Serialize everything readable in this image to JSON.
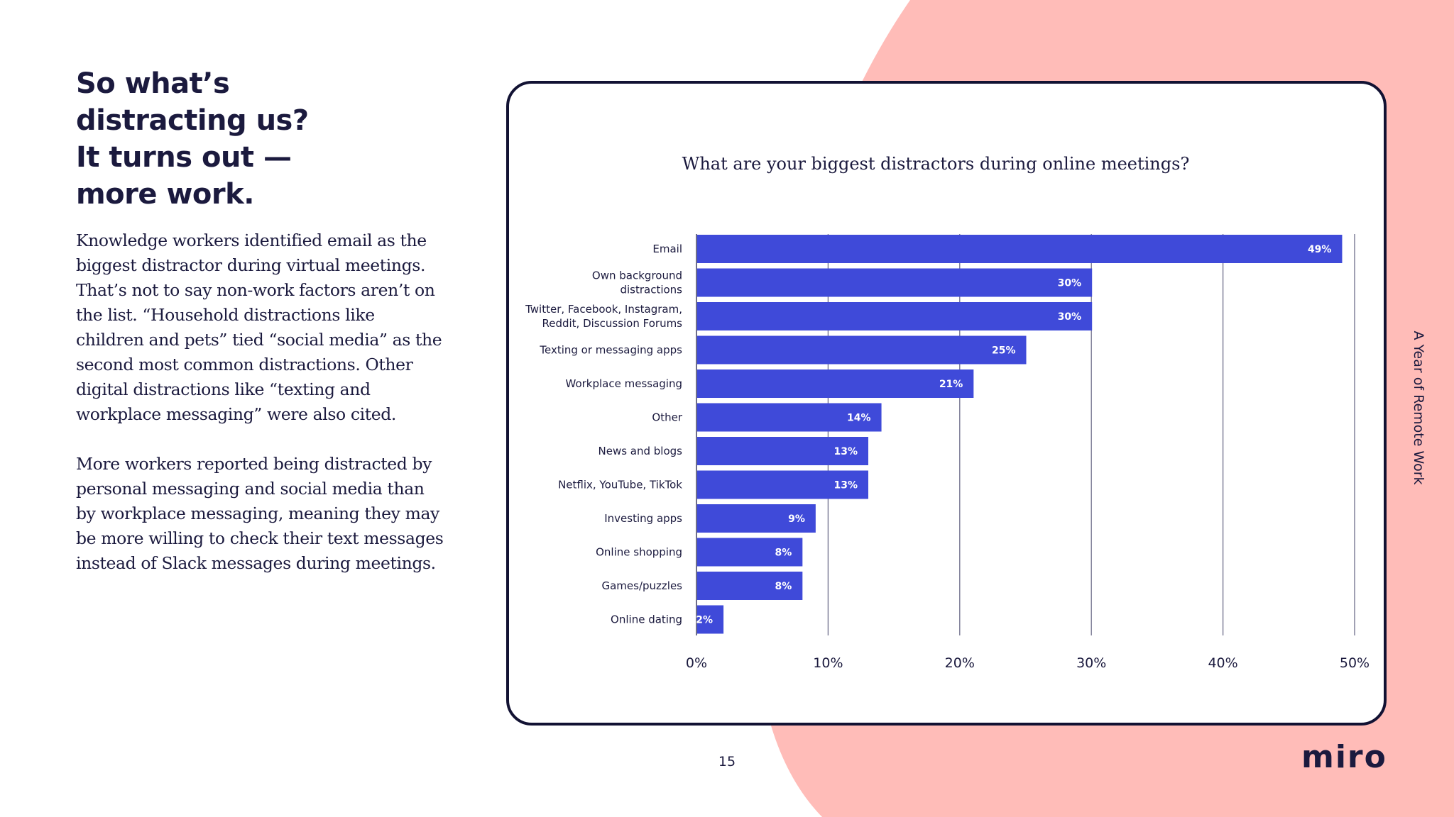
{
  "slide": {
    "heading_lines": [
      "So what’s",
      "distracting us?",
      "It turns out —",
      "more work."
    ],
    "paragraph1": "Knowledge workers identified email as the biggest distractor during virtual meetings. That’s not to say non-work factors aren’t on the list. “Household distractions like children and pets” tied “social media” as the second most common distractions. Other digital distractions like “texting and workplace messaging” were also cited.",
    "paragraph2": "More workers reported being distracted by personal messaging and social media than by workplace messaging, meaning they may be more willing to check their text messages instead of Slack messages during meetings.",
    "side_label": "A Year of Remote Work",
    "page_number": "15",
    "logo": "miro"
  },
  "colors": {
    "accent_pink": "#ffbcb8",
    "bar_blue": "#3f4ad9",
    "ink": "#1b1a3e"
  },
  "chart_data": {
    "type": "bar",
    "orientation": "horizontal",
    "title": "What are your biggest distractors during online meetings?",
    "xlabel": "",
    "ylabel": "",
    "categories": [
      [
        "Email"
      ],
      [
        "Own background",
        "distractions"
      ],
      [
        "Twitter, Facebook, Instagram,",
        "Reddit, Discussion Forums"
      ],
      [
        "Texting or messaging apps"
      ],
      [
        "Workplace messaging"
      ],
      [
        "Other"
      ],
      [
        "News and blogs"
      ],
      [
        "Netflix, YouTube, TikTok"
      ],
      [
        "Investing apps"
      ],
      [
        "Online shopping"
      ],
      [
        "Games/puzzles"
      ],
      [
        "Online dating"
      ]
    ],
    "values": [
      49,
      30,
      30,
      25,
      21,
      14,
      13,
      13,
      9,
      8,
      8,
      2
    ],
    "value_labels": [
      "49%",
      "30%",
      "30%",
      "25%",
      "21%",
      "14%",
      "13%",
      "13%",
      "9%",
      "8%",
      "8%",
      "2%"
    ],
    "xlim": [
      0,
      50
    ],
    "xticks": [
      0,
      10,
      20,
      30,
      40,
      50
    ],
    "xtick_labels": [
      "0%",
      "10%",
      "20%",
      "30%",
      "40%",
      "50%"
    ],
    "grid": true
  }
}
